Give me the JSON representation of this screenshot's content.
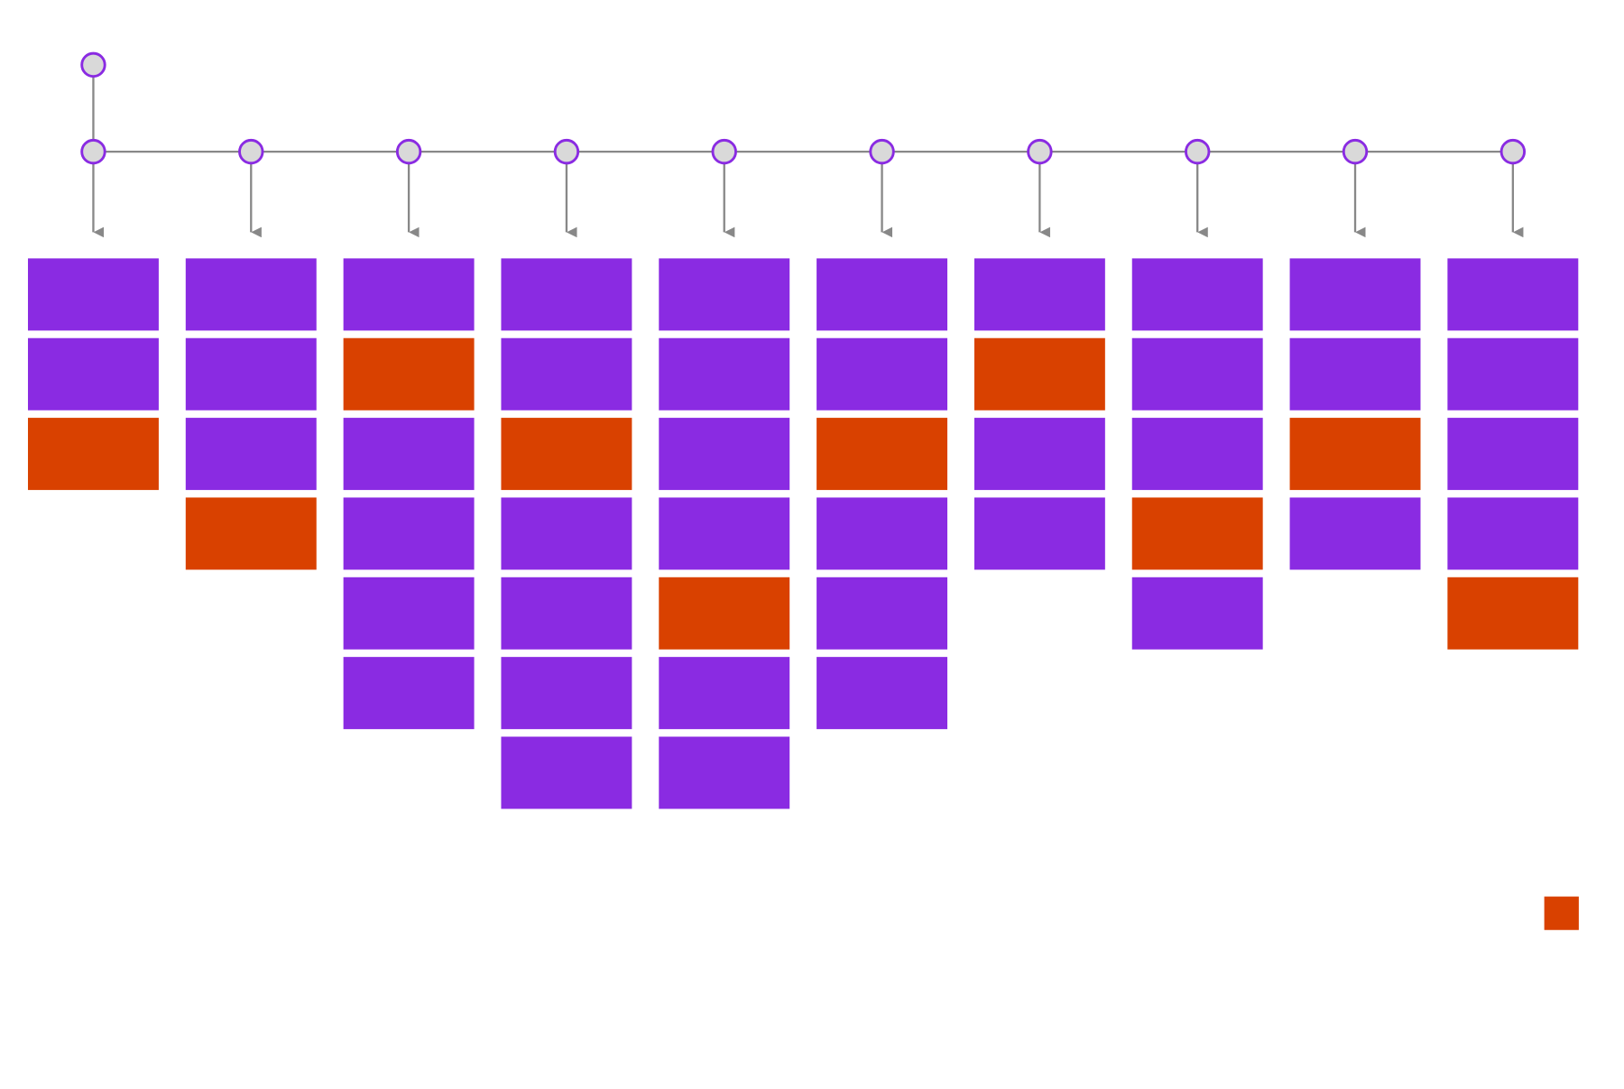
{
  "node_fill": "#d9d9d9",
  "node_stroke": "#8a2be2",
  "connector_color": "#888888",
  "legend_color": "#d94100",
  "columns": [
    [
      "#8a2be2",
      "#8a2be2",
      "#d94100"
    ],
    [
      "#8a2be2",
      "#8a2be2",
      "#8a2be2",
      "#d94100"
    ],
    [
      "#8a2be2",
      "#d94100",
      "#8a2be2",
      "#8a2be2",
      "#8a2be2",
      "#8a2be2"
    ],
    [
      "#8a2be2",
      "#8a2be2",
      "#d94100",
      "#8a2be2",
      "#8a2be2",
      "#8a2be2",
      "#8a2be2"
    ],
    [
      "#8a2be2",
      "#8a2be2",
      "#8a2be2",
      "#8a2be2",
      "#d94100",
      "#8a2be2",
      "#8a2be2"
    ],
    [
      "#8a2be2",
      "#8a2be2",
      "#d94100",
      "#8a2be2",
      "#8a2be2",
      "#8a2be2"
    ],
    [
      "#8a2be2",
      "#d94100",
      "#8a2be2",
      "#8a2be2"
    ],
    [
      "#8a2be2",
      "#8a2be2",
      "#8a2be2",
      "#d94100",
      "#8a2be2"
    ],
    [
      "#8a2be2",
      "#8a2be2",
      "#d94100",
      "#8a2be2"
    ],
    [
      "#8a2be2",
      "#8a2be2",
      "#8a2be2",
      "#8a2be2",
      "#d94100"
    ]
  ]
}
